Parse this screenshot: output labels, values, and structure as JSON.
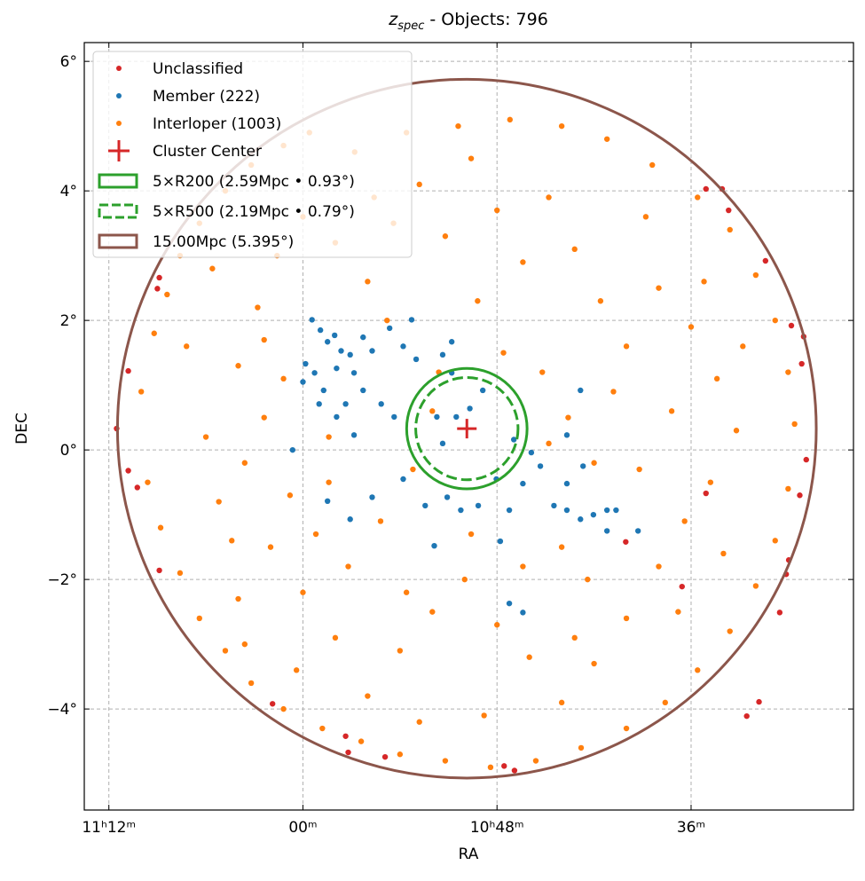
{
  "chart_data": {
    "type": "scatter",
    "title": {
      "var": "z",
      "sub": "spec",
      "rest": " - Objects: 796"
    },
    "xlabel": "RA",
    "ylabel": "DEC",
    "xlim": [
      168.38,
      156.49
    ],
    "ylim": [
      -5.56,
      6.29
    ],
    "xticks": [
      {
        "value": 168,
        "label": "11ʰ12ᵐ"
      },
      {
        "value": 165,
        "label": "00ᵐ"
      },
      {
        "value": 162,
        "label": "10ʰ48ᵐ"
      },
      {
        "value": 159,
        "label": "36ᵐ"
      }
    ],
    "yticks": [
      {
        "value": -4,
        "label": "−4°"
      },
      {
        "value": -2,
        "label": "−2°"
      },
      {
        "value": 0,
        "label": "0°"
      },
      {
        "value": 2,
        "label": "2°"
      },
      {
        "value": 4,
        "label": "4°"
      },
      {
        "value": 6,
        "label": "6°"
      }
    ],
    "grid": true,
    "legend": "upper left",
    "series": [
      {
        "name": "Unclassified",
        "color": "#d62728",
        "x": [
          167.22,
          167.25,
          167.7,
          167.88,
          167.7,
          167.56,
          167.22,
          165.47,
          164.34,
          164.3,
          163.73,
          161.89,
          161.73,
          158.14,
          157.95,
          157.63,
          157.53,
          157.49,
          157.32,
          157.22,
          157.29,
          157.45,
          157.26,
          157.85,
          158.42,
          158.77,
          158.52,
          160.01,
          159.14,
          158.77
        ],
        "values": [
          2.66,
          2.49,
          1.22,
          0.33,
          -0.32,
          -0.58,
          -1.86,
          -3.92,
          -4.42,
          -4.67,
          -4.74,
          -4.88,
          -4.95,
          -4.11,
          -3.89,
          -2.51,
          -1.92,
          -1.7,
          -0.7,
          -0.15,
          1.33,
          1.92,
          1.75,
          2.92,
          3.7,
          4.03,
          4.03,
          -1.42,
          -2.11,
          -0.67
        ]
      },
      {
        "name": "Member (222)",
        "color": "#1f77b4",
        "x": [
          164.86,
          164.73,
          164.62,
          164.51,
          164.41,
          164.27,
          164.96,
          164.82,
          165.0,
          164.68,
          164.48,
          164.21,
          164.07,
          163.93,
          163.66,
          163.45,
          163.32,
          163.25,
          164.07,
          164.34,
          164.75,
          164.48,
          163.79,
          163.59,
          164.21,
          165.16,
          164.62,
          164.27,
          163.93,
          163.45,
          163.11,
          162.97,
          162.77,
          162.56,
          162.29,
          162.01,
          161.81,
          161.6,
          161.47,
          161.33,
          161.12,
          160.92,
          160.71,
          160.51,
          160.3,
          160.16,
          160.92,
          160.67,
          162.42,
          162.63,
          162.7,
          162.84,
          162.7,
          162.22,
          161.74,
          162.84,
          162.93,
          161.81,
          161.6,
          161.95,
          160.92,
          160.71,
          160.3,
          159.82
        ],
        "values": [
          2.01,
          1.85,
          1.67,
          1.77,
          1.53,
          1.47,
          1.33,
          1.19,
          1.05,
          0.92,
          1.26,
          1.19,
          1.74,
          1.53,
          1.88,
          1.6,
          2.01,
          1.4,
          0.92,
          0.71,
          0.71,
          0.51,
          0.71,
          0.51,
          0.23,
          0.0,
          -0.79,
          -1.07,
          -0.73,
          -0.45,
          -0.86,
          -1.48,
          -0.73,
          -0.93,
          -0.86,
          -0.45,
          -0.93,
          -0.52,
          -0.04,
          -0.25,
          -0.86,
          -0.93,
          -1.07,
          -1.0,
          -0.93,
          -0.93,
          -0.52,
          -0.25,
          0.64,
          0.51,
          1.19,
          1.47,
          1.67,
          0.92,
          0.16,
          0.1,
          0.51,
          -2.37,
          -2.51,
          -1.41,
          0.23,
          0.92,
          -1.25,
          -1.25
        ]
      },
      {
        "name": "Interloper (1003)",
        "color": "#ff7f0e",
        "x": [
          167.5,
          167.3,
          167.1,
          166.9,
          166.6,
          166.2,
          165.8,
          165.3,
          164.9,
          167.4,
          167.2,
          166.9,
          166.6,
          166.2,
          165.8,
          165.3,
          164.7,
          164.1,
          163.5,
          162.8,
          162.1,
          161.4,
          160.7,
          160.0,
          159.4,
          158.9,
          158.4,
          158.0,
          157.7,
          157.5,
          157.4,
          157.5,
          157.7,
          158.0,
          158.4,
          158.9,
          159.6,
          160.3,
          161.0,
          161.8,
          162.6,
          163.4,
          164.2,
          166.5,
          166.3,
          166.0,
          165.7,
          165.4,
          165.0,
          164.5,
          164.0,
          163.6,
          163.2,
          162.8,
          162.4,
          162.0,
          161.6,
          161.2,
          160.8,
          160.4,
          160.0,
          159.5,
          159.0,
          158.6,
          158.3,
          158.7,
          159.1,
          159.5,
          160.0,
          160.5,
          161.0,
          161.5,
          162.0,
          162.5,
          163.0,
          163.5,
          164.0,
          164.5,
          165.0,
          165.5,
          166.0,
          165.9,
          165.6,
          165.2,
          164.8,
          164.3,
          163.8,
          163.3,
          163.0,
          163.7,
          162.3,
          161.9,
          161.3,
          160.9,
          160.5,
          161.0,
          160.6,
          159.8,
          159.3,
          158.8,
          159.7,
          166.8,
          166.4,
          165.9,
          165.1,
          163.2,
          162.2,
          161.6,
          159.2,
          158.5,
          162.9,
          164.6,
          162.4,
          161.2,
          160.2,
          163.9,
          165.6,
          166.1,
          163.4,
          160.8,
          158.2,
          164.6,
          165.3
        ],
        "values": [
          0.9,
          1.8,
          2.4,
          3.0,
          3.5,
          4.0,
          4.4,
          4.7,
          4.9,
          -0.5,
          -1.2,
          -1.9,
          -2.6,
          -3.1,
          -3.6,
          -4.0,
          -4.3,
          -4.5,
          -4.7,
          -4.8,
          -4.9,
          -4.8,
          -4.6,
          -4.3,
          -3.9,
          -3.4,
          -2.8,
          -2.1,
          -1.4,
          -0.6,
          0.4,
          1.2,
          2.0,
          2.7,
          3.4,
          3.9,
          4.4,
          4.8,
          5.0,
          5.1,
          5.0,
          4.9,
          4.6,
          0.2,
          -0.8,
          1.3,
          2.2,
          3.0,
          3.6,
          3.2,
          2.6,
          3.5,
          4.1,
          3.3,
          4.5,
          3.7,
          2.9,
          3.9,
          3.1,
          2.3,
          1.6,
          2.5,
          1.9,
          1.1,
          0.3,
          -0.5,
          -1.1,
          -1.8,
          -2.6,
          -3.3,
          -3.9,
          -3.2,
          -2.7,
          -2.0,
          -2.5,
          -3.1,
          -3.8,
          -2.9,
          -2.2,
          -1.5,
          -2.3,
          -0.2,
          0.5,
          -0.7,
          -1.3,
          -1.8,
          -1.1,
          -0.3,
          0.6,
          2.0,
          2.3,
          1.5,
          1.2,
          0.5,
          -0.2,
          -1.5,
          -2.0,
          -0.3,
          0.6,
          2.6,
          3.6,
          1.6,
          2.8,
          -3.0,
          -3.4,
          -4.2,
          -4.1,
          -1.8,
          -2.5,
          -1.6,
          1.2,
          0.2,
          -1.3,
          0.1,
          0.9,
          3.9,
          1.7,
          -1.4,
          -2.2,
          -2.9,
          1.6,
          -0.5,
          1.1
        ]
      }
    ],
    "center": {
      "name": "Cluster Center",
      "color": "#d62728",
      "x": 162.466,
      "y": 0.329
    },
    "circles": [
      {
        "name": "5×R200 (2.59Mpc • 0.93°)",
        "radius": 0.93,
        "color": "#2ca02c",
        "dashed": false
      },
      {
        "name": "5×R500 (2.19Mpc • 0.79°)",
        "radius": 0.79,
        "color": "#2ca02c",
        "dashed": true
      },
      {
        "name": "15.00Mpc (5.395°)",
        "radius": 5.395,
        "color": "#8c564b",
        "dashed": false
      }
    ]
  }
}
